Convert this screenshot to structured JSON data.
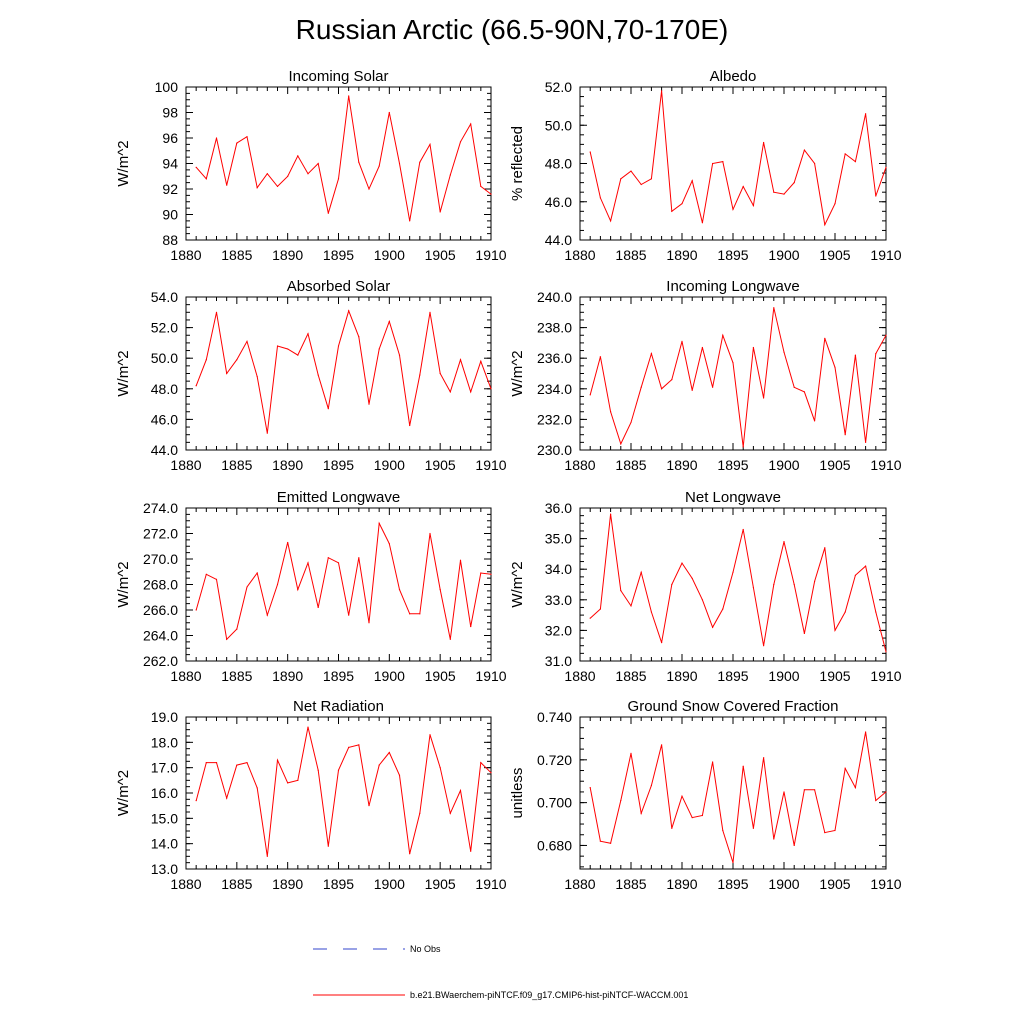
{
  "page": {
    "title": "Russian Arctic (66.5-90N,70-170E)"
  },
  "legend": {
    "obs_label": "No Obs",
    "obs_color": "#3344cc",
    "model_label": "b.e21.BWaerchem-piNTCF.f09_g17.CMIP6-hist-piNTCF-WACCM.001",
    "model_color": "#ff0000"
  },
  "chart_data": [
    {
      "type": "line",
      "title": "Incoming Solar",
      "ylabel": "W/m^2",
      "xlim": [
        1880,
        1910
      ],
      "ylim": [
        88,
        100
      ],
      "yticks": [
        "88",
        "90",
        "92",
        "94",
        "96",
        "98",
        "100"
      ],
      "xticks": [
        "1880",
        "1885",
        "1890",
        "1895",
        "1900",
        "1905",
        "1910"
      ],
      "x": [
        1881,
        1882,
        1883,
        1884,
        1885,
        1886,
        1887,
        1888,
        1889,
        1890,
        1891,
        1892,
        1893,
        1894,
        1895,
        1896,
        1897,
        1898,
        1899,
        1900,
        1901,
        1902,
        1903,
        1904,
        1905,
        1906,
        1907,
        1908,
        1909,
        1910
      ],
      "series": [
        {
          "values": [
            93.7,
            92.8,
            96.0,
            92.3,
            95.6,
            96.1,
            92.1,
            93.2,
            92.2,
            93.0,
            94.6,
            93.2,
            94.0,
            90.1,
            92.8,
            99.3,
            94.1,
            92.0,
            93.8,
            98.0,
            94.0,
            89.5,
            94.1,
            95.5,
            90.2,
            93.1,
            95.7,
            97.1,
            92.2,
            91.6
          ]
        }
      ]
    },
    {
      "type": "line",
      "title": "Albedo",
      "ylabel": "% reflected",
      "xlim": [
        1880,
        1910
      ],
      "ylim": [
        44.0,
        52.0
      ],
      "yticks": [
        "44.0",
        "46.0",
        "48.0",
        "50.0",
        "52.0"
      ],
      "xticks": [
        "1880",
        "1885",
        "1890",
        "1895",
        "1900",
        "1905",
        "1910"
      ],
      "x": [
        1881,
        1882,
        1883,
        1884,
        1885,
        1886,
        1887,
        1888,
        1889,
        1890,
        1891,
        1892,
        1893,
        1894,
        1895,
        1896,
        1897,
        1898,
        1899,
        1900,
        1901,
        1902,
        1903,
        1904,
        1905,
        1906,
        1907,
        1908,
        1909,
        1910
      ],
      "series": [
        {
          "values": [
            48.6,
            46.2,
            45.0,
            47.2,
            47.6,
            46.9,
            47.2,
            51.8,
            45.5,
            45.9,
            47.1,
            44.9,
            48.0,
            48.1,
            45.6,
            46.8,
            45.8,
            49.1,
            46.5,
            46.4,
            47.0,
            48.7,
            48.0,
            44.8,
            45.9,
            48.5,
            48.1,
            50.6,
            46.3,
            47.8
          ]
        }
      ]
    },
    {
      "type": "line",
      "title": "Absorbed Solar",
      "ylabel": "W/m^2",
      "xlim": [
        1880,
        1910
      ],
      "ylim": [
        44.0,
        54.0
      ],
      "yticks": [
        "44.0",
        "46.0",
        "48.0",
        "50.0",
        "52.0",
        "54.0"
      ],
      "xticks": [
        "1880",
        "1885",
        "1890",
        "1895",
        "1900",
        "1905",
        "1910"
      ],
      "x": [
        1881,
        1882,
        1883,
        1884,
        1885,
        1886,
        1887,
        1888,
        1889,
        1890,
        1891,
        1892,
        1893,
        1894,
        1895,
        1896,
        1897,
        1898,
        1899,
        1900,
        1901,
        1902,
        1903,
        1904,
        1905,
        1906,
        1907,
        1908,
        1909,
        1910
      ],
      "series": [
        {
          "values": [
            48.2,
            49.9,
            53.0,
            49.0,
            49.9,
            51.1,
            48.8,
            45.1,
            50.8,
            50.6,
            50.2,
            51.6,
            48.9,
            46.7,
            50.8,
            53.1,
            51.4,
            47.0,
            50.6,
            52.4,
            50.2,
            45.6,
            48.9,
            53.0,
            49.0,
            47.8,
            49.9,
            47.8,
            49.8,
            48.0
          ]
        }
      ]
    },
    {
      "type": "line",
      "title": "Incoming Longwave",
      "ylabel": "W/m^2",
      "xlim": [
        1880,
        1910
      ],
      "ylim": [
        230.0,
        240.0
      ],
      "yticks": [
        "230.0",
        "232.0",
        "234.0",
        "236.0",
        "238.0",
        "240.0"
      ],
      "xticks": [
        "1880",
        "1885",
        "1890",
        "1895",
        "1900",
        "1905",
        "1910"
      ],
      "x": [
        1881,
        1882,
        1883,
        1884,
        1885,
        1886,
        1887,
        1888,
        1889,
        1890,
        1891,
        1892,
        1893,
        1894,
        1895,
        1896,
        1897,
        1898,
        1899,
        1900,
        1901,
        1902,
        1903,
        1904,
        1905,
        1906,
        1907,
        1908,
        1909,
        1910
      ],
      "series": [
        {
          "values": [
            233.6,
            236.1,
            232.5,
            230.4,
            231.8,
            234.1,
            236.3,
            234.0,
            234.6,
            237.1,
            233.9,
            236.7,
            234.1,
            237.5,
            235.7,
            230.2,
            236.7,
            233.4,
            239.3,
            236.4,
            234.1,
            233.8,
            231.9,
            237.3,
            235.4,
            231.0,
            236.2,
            230.5,
            236.3,
            237.5
          ]
        }
      ]
    },
    {
      "type": "line",
      "title": "Emitted Longwave",
      "ylabel": "W/m^2",
      "xlim": [
        1880,
        1910
      ],
      "ylim": [
        262.0,
        274.0
      ],
      "yticks": [
        "262.0",
        "264.0",
        "266.0",
        "268.0",
        "270.0",
        "272.0",
        "274.0"
      ],
      "xticks": [
        "1880",
        "1885",
        "1890",
        "1895",
        "1900",
        "1905",
        "1910"
      ],
      "x": [
        1881,
        1882,
        1883,
        1884,
        1885,
        1886,
        1887,
        1888,
        1889,
        1890,
        1891,
        1892,
        1893,
        1894,
        1895,
        1896,
        1897,
        1898,
        1899,
        1900,
        1901,
        1902,
        1903,
        1904,
        1905,
        1906,
        1907,
        1908,
        1909,
        1910
      ],
      "series": [
        {
          "values": [
            266.0,
            268.8,
            268.4,
            263.7,
            264.5,
            267.8,
            268.9,
            265.6,
            268.0,
            271.3,
            267.6,
            269.7,
            266.2,
            270.1,
            269.7,
            265.6,
            270.1,
            265.0,
            272.8,
            271.2,
            267.6,
            265.7,
            265.7,
            272.0,
            267.6,
            263.7,
            269.9,
            264.7,
            268.9,
            268.8
          ]
        }
      ]
    },
    {
      "type": "line",
      "title": "Net Longwave",
      "ylabel": "W/m^2",
      "xlim": [
        1880,
        1910
      ],
      "ylim": [
        31.0,
        36.0
      ],
      "yticks": [
        "31.0",
        "32.0",
        "33.0",
        "34.0",
        "35.0",
        "36.0"
      ],
      "xticks": [
        "1880",
        "1885",
        "1890",
        "1895",
        "1900",
        "1905",
        "1910"
      ],
      "x": [
        1881,
        1882,
        1883,
        1884,
        1885,
        1886,
        1887,
        1888,
        1889,
        1890,
        1891,
        1892,
        1893,
        1894,
        1895,
        1896,
        1897,
        1898,
        1899,
        1900,
        1901,
        1902,
        1903,
        1904,
        1905,
        1906,
        1907,
        1908,
        1909,
        1910
      ],
      "series": [
        {
          "values": [
            32.4,
            32.7,
            35.8,
            33.3,
            32.8,
            33.9,
            32.6,
            31.6,
            33.5,
            34.2,
            33.7,
            33.0,
            32.1,
            32.7,
            33.9,
            35.3,
            33.4,
            31.5,
            33.5,
            34.9,
            33.5,
            31.9,
            33.6,
            34.7,
            32.0,
            32.6,
            33.8,
            34.1,
            32.6,
            31.3
          ]
        }
      ]
    },
    {
      "type": "line",
      "title": "Net Radiation",
      "ylabel": "W/m^2",
      "xlim": [
        1880,
        1910
      ],
      "ylim": [
        13.0,
        19.0
      ],
      "yticks": [
        "13.0",
        "14.0",
        "15.0",
        "16.0",
        "17.0",
        "18.0",
        "19.0"
      ],
      "xticks": [
        "1880",
        "1885",
        "1890",
        "1895",
        "1900",
        "1905",
        "1910"
      ],
      "x": [
        1881,
        1882,
        1883,
        1884,
        1885,
        1886,
        1887,
        1888,
        1889,
        1890,
        1891,
        1892,
        1893,
        1894,
        1895,
        1896,
        1897,
        1898,
        1899,
        1900,
        1901,
        1902,
        1903,
        1904,
        1905,
        1906,
        1907,
        1908,
        1909,
        1910
      ],
      "series": [
        {
          "values": [
            15.7,
            17.2,
            17.2,
            15.8,
            17.1,
            17.2,
            16.2,
            13.5,
            17.3,
            16.4,
            16.5,
            18.6,
            16.9,
            13.9,
            16.9,
            17.8,
            17.9,
            15.5,
            17.1,
            17.6,
            16.7,
            13.6,
            15.2,
            18.3,
            17.0,
            15.2,
            16.1,
            13.7,
            17.2,
            16.8
          ]
        }
      ]
    },
    {
      "type": "line",
      "title": "Ground Snow Covered Fraction",
      "ylabel": "unitless",
      "xlim": [
        1880,
        1910
      ],
      "ylim": [
        0.669,
        0.74
      ],
      "yticks": [
        "0.680",
        "0.700",
        "0.720",
        "0.740"
      ],
      "ytick_values": [
        0.68,
        0.7,
        0.72,
        0.74
      ],
      "xticks": [
        "1880",
        "1885",
        "1890",
        "1895",
        "1900",
        "1905",
        "1910"
      ],
      "x": [
        1881,
        1882,
        1883,
        1884,
        1885,
        1886,
        1887,
        1888,
        1889,
        1890,
        1891,
        1892,
        1893,
        1894,
        1895,
        1896,
        1897,
        1898,
        1899,
        1900,
        1901,
        1902,
        1903,
        1904,
        1905,
        1906,
        1907,
        1908,
        1909,
        1910
      ],
      "series": [
        {
          "values": [
            0.707,
            0.682,
            0.681,
            0.701,
            0.723,
            0.695,
            0.708,
            0.727,
            0.688,
            0.703,
            0.693,
            0.694,
            0.719,
            0.687,
            0.672,
            0.717,
            0.688,
            0.721,
            0.683,
            0.705,
            0.68,
            0.706,
            0.706,
            0.686,
            0.687,
            0.716,
            0.707,
            0.733,
            0.701,
            0.705
          ]
        }
      ]
    }
  ]
}
